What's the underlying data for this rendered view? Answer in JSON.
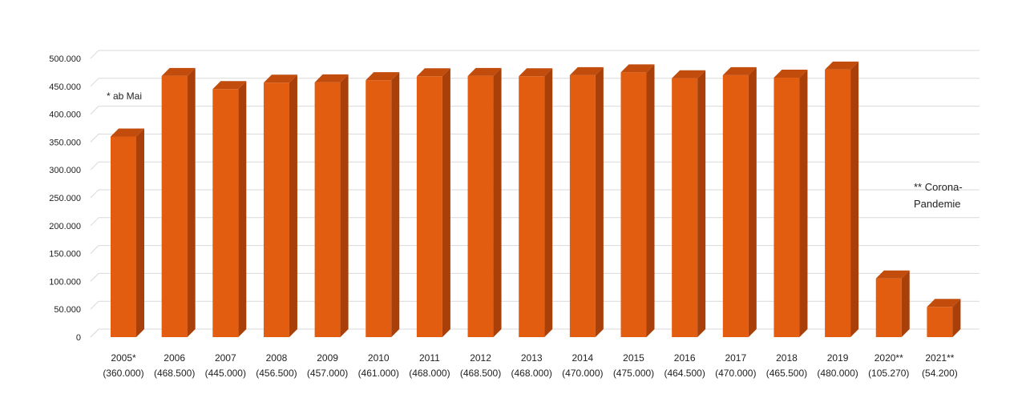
{
  "chart_data": {
    "type": "bar",
    "title": "",
    "xlabel": "",
    "ylabel": "",
    "ylim": [
      0,
      500000
    ],
    "y_ticks": [
      "0",
      "50.000",
      "100.000",
      "150.000",
      "200.000",
      "250.000",
      "300.000",
      "350.000",
      "400.000",
      "450.000",
      "500.000"
    ],
    "grid": true,
    "categories": [
      "2005*",
      "2006",
      "2007",
      "2008",
      "2009",
      "2010",
      "2011",
      "2012",
      "2013",
      "2014",
      "2015",
      "2016",
      "2017",
      "2018",
      "2019",
      "2020**",
      "2021**"
    ],
    "value_labels": [
      "(360.000)",
      "(468.500)",
      "(445.000)",
      "(456.500)",
      "(457.000)",
      "(461.000)",
      "(468.000)",
      "(468.500)",
      "(468.000)",
      "(470.000)",
      "(475.000)",
      "(464.500)",
      "(470.000)",
      "(465.500)",
      "(480.000)",
      "(105.270)",
      "(54.200)"
    ],
    "values": [
      360000,
      468500,
      445000,
      456500,
      457000,
      461000,
      468000,
      468500,
      468000,
      470000,
      475000,
      464500,
      470000,
      465500,
      480000,
      105270,
      54200
    ],
    "annotations": [
      {
        "id": "ab-mai",
        "lines": [
          "* ab Mai"
        ]
      },
      {
        "id": "corona",
        "lines": [
          "** Corona-",
          "Pandemie"
        ]
      }
    ],
    "colors": {
      "bar_front": "#E35D10",
      "bar_side": "#A9400A",
      "bar_top": "#C24C0C",
      "grid": "#d9d9d9"
    }
  }
}
